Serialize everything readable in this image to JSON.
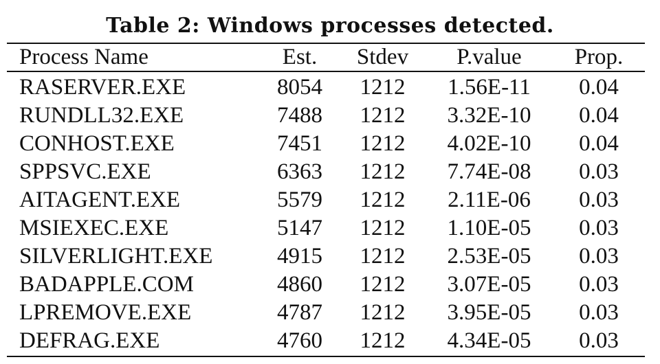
{
  "caption": "Table 2: Windows processes detected.",
  "table": {
    "headers": [
      "Process Name",
      "Est.",
      "Stdev",
      "P.value",
      "Prop."
    ],
    "rows": [
      [
        "RASERVER.EXE",
        "8054",
        "1212",
        "1.56E-11",
        "0.04"
      ],
      [
        "RUNDLL32.EXE",
        "7488",
        "1212",
        "3.32E-10",
        "0.04"
      ],
      [
        "CONHOST.EXE",
        "7451",
        "1212",
        "4.02E-10",
        "0.04"
      ],
      [
        "SPPSVC.EXE",
        "6363",
        "1212",
        "7.74E-08",
        "0.03"
      ],
      [
        "AITAGENT.EXE",
        "5579",
        "1212",
        "2.11E-06",
        "0.03"
      ],
      [
        "MSIEXEC.EXE",
        "5147",
        "1212",
        "1.10E-05",
        "0.03"
      ],
      [
        "SILVERLIGHT.EXE",
        "4915",
        "1212",
        "2.53E-05",
        "0.03"
      ],
      [
        "BADAPPLE.COM",
        "4860",
        "1212",
        "3.07E-05",
        "0.03"
      ],
      [
        "LPREMOVE.EXE",
        "4787",
        "1212",
        "3.95E-05",
        "0.03"
      ],
      [
        "DEFRAG.EXE",
        "4760",
        "1212",
        "4.34E-05",
        "0.03"
      ]
    ]
  }
}
